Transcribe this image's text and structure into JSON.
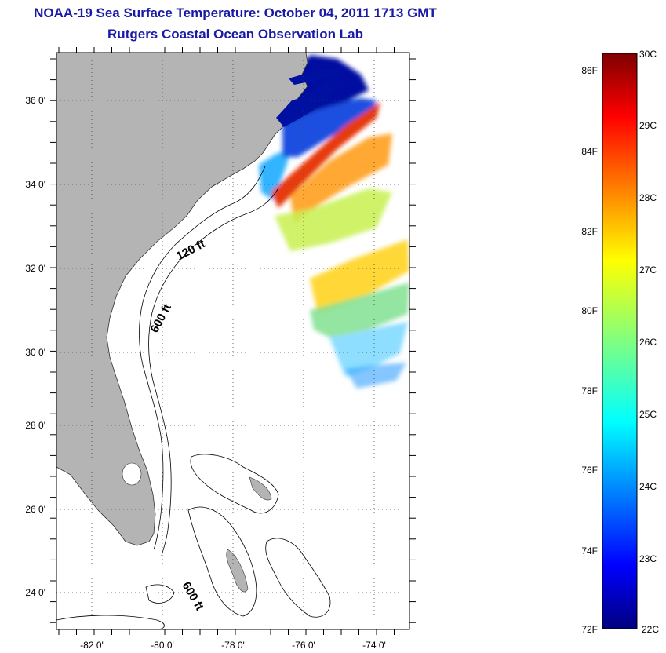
{
  "title": "NOAA-19 Sea Surface Temperature:  October 04, 2011 1713 GMT",
  "subtitle": "Rutgers Coastal Ocean Observation Lab",
  "map": {
    "lon_range": [
      -83,
      -73
    ],
    "lat_range": [
      23,
      37
    ],
    "lat_ticks": [
      "24 0'",
      "26 0'",
      "28 0'",
      "30 0'",
      "32 0'",
      "34 0'",
      "36 0'"
    ],
    "lon_ticks": [
      "-82 0'",
      "-80 0'",
      "-78 0'",
      "-76 0'",
      "-74 0'"
    ],
    "contour_labels": [
      "120 ft",
      "600 ft",
      "600 ft"
    ],
    "land_color": "#b4b4b4",
    "grid": "dotted"
  },
  "colorbar": {
    "range_c": [
      22,
      30
    ],
    "celsius_labels": [
      "30C",
      "29C",
      "28C",
      "27C",
      "26C",
      "25C",
      "24C",
      "23C",
      "22C"
    ],
    "fahrenheit_labels": [
      "86F",
      "84F",
      "82F",
      "80F",
      "78F",
      "76F",
      "74F",
      "72F"
    ],
    "colormap": "jet"
  }
}
